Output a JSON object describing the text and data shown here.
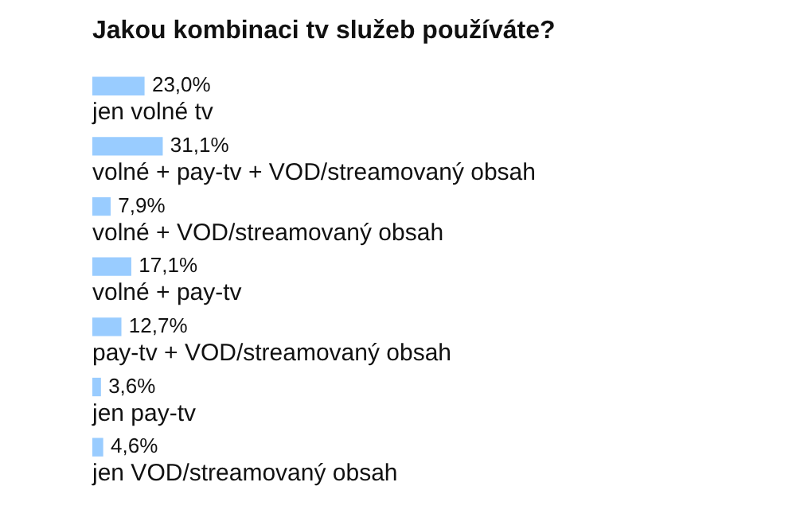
{
  "chart_data": {
    "type": "bar",
    "orientation": "horizontal",
    "title": "Jakou kombinaci tv služeb používáte?",
    "categories": [
      "jen volné tv",
      "volné + pay-tv + VOD/streamovaný obsah",
      "volné + VOD/streamovaný obsah",
      "volné + pay-tv",
      "pay-tv + VOD/streamovaný obsah",
      "jen pay-tv",
      "jen VOD/streamovaný obsah"
    ],
    "values": [
      23.0,
      31.1,
      7.9,
      17.1,
      12.7,
      3.6,
      4.6
    ],
    "value_labels": [
      "23,0%",
      "31,1%",
      "7,9%",
      "17,1%",
      "12,7%",
      "3,6%",
      "4,6%"
    ],
    "color": "#99ccff"
  }
}
